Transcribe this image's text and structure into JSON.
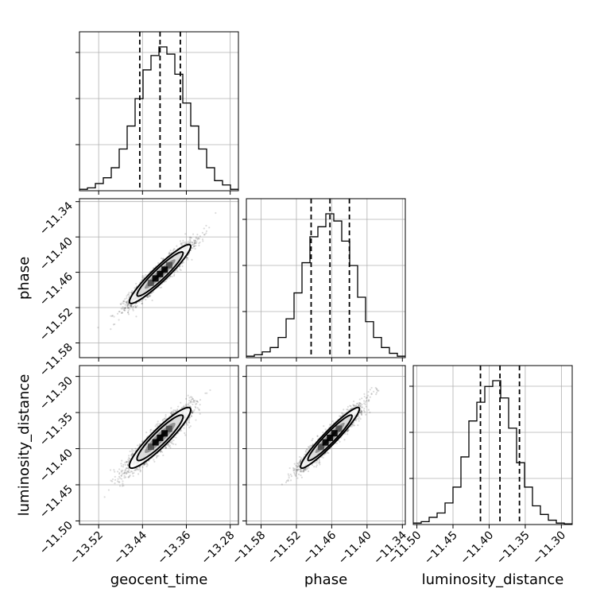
{
  "chart_data": {
    "type": "corner",
    "parameters": [
      {
        "name": "geocent_time",
        "axis_label": "geocent_time",
        "range": [
          -13.555,
          -13.265
        ],
        "ticks": [
          -13.52,
          -13.44,
          -13.36,
          -13.28
        ],
        "tick_labels": [
          "−13.52",
          "−13.44",
          "−13.36",
          "−13.28"
        ],
        "quantiles": [
          -13.445,
          -13.408,
          -13.371
        ],
        "histogram": {
          "edges_start": -13.555,
          "bin_width": 0.0145,
          "counts": [
            0.01,
            0.02,
            0.05,
            0.09,
            0.16,
            0.29,
            0.45,
            0.64,
            0.84,
            0.94,
            1.0,
            0.95,
            0.81,
            0.61,
            0.45,
            0.29,
            0.16,
            0.07,
            0.04,
            0.01
          ]
        }
      },
      {
        "name": "phase",
        "axis_label": "phase",
        "range": [
          -11.605,
          -11.335
        ],
        "ticks": [
          -11.58,
          -11.52,
          -11.46,
          -11.4,
          -11.34
        ],
        "tick_labels": [
          "−11.58",
          "−11.52",
          "−11.46",
          "−11.40",
          "−11.34"
        ],
        "quantiles": [
          -11.495,
          -11.463,
          -11.43
        ],
        "histogram": {
          "edges_start": -11.605,
          "bin_width": 0.0135,
          "counts": [
            0.01,
            0.02,
            0.04,
            0.07,
            0.14,
            0.27,
            0.45,
            0.66,
            0.84,
            0.91,
            1.0,
            0.95,
            0.81,
            0.64,
            0.42,
            0.25,
            0.14,
            0.07,
            0.03,
            0.01
          ]
        }
      },
      {
        "name": "luminosity_distance",
        "axis_label": "luminosity_distance",
        "range": [
          -11.505,
          -11.285
        ],
        "ticks": [
          -11.5,
          -11.45,
          -11.4,
          -11.35,
          -11.3
        ],
        "tick_labels": [
          "−11.50",
          "−11.45",
          "−11.40",
          "−11.35",
          "−11.30"
        ],
        "quantiles": [
          -11.412,
          -11.385,
          -11.358
        ],
        "histogram": {
          "edges_start": -11.505,
          "bin_width": 0.011,
          "counts": [
            0.01,
            0.02,
            0.05,
            0.08,
            0.15,
            0.26,
            0.47,
            0.72,
            0.85,
            0.96,
            1.0,
            0.88,
            0.67,
            0.43,
            0.26,
            0.13,
            0.07,
            0.03,
            0.01,
            0.005
          ]
        }
      }
    ],
    "pairs": [
      {
        "x": "geocent_time",
        "y": "phase",
        "mean": [
          -13.408,
          -11.463
        ],
        "sd": [
          0.028,
          0.025
        ],
        "corr": 0.94,
        "levels_sigma": [
          0.5,
          1.0,
          1.5,
          2.0
        ]
      },
      {
        "x": "geocent_time",
        "y": "luminosity_distance",
        "mean": [
          -13.408,
          -11.385
        ],
        "sd": [
          0.028,
          0.021
        ],
        "corr": 0.92,
        "levels_sigma": [
          0.5,
          1.0,
          1.5,
          2.0
        ]
      },
      {
        "x": "phase",
        "y": "luminosity_distance",
        "mean": [
          -11.463,
          -11.385
        ],
        "sd": [
          0.025,
          0.021
        ],
        "corr": 0.95,
        "levels_sigma": [
          0.5,
          1.0,
          1.5,
          2.0
        ]
      }
    ],
    "scatter_samples_per_panel": 2500,
    "grid": true,
    "colors": {
      "points": "#000000",
      "contour_line": "#000000",
      "quantile_line": "#000000",
      "grid": "#b0b0b0"
    }
  }
}
